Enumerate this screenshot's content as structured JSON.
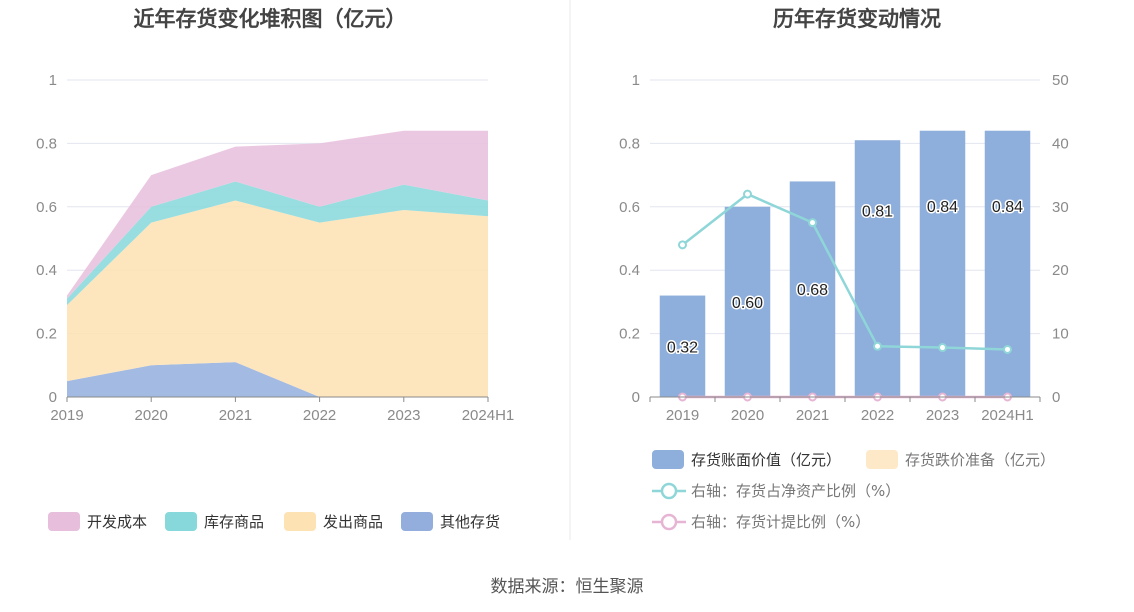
{
  "source": "数据来源：恒生聚源",
  "colors": {
    "kaifa": "#e7bedc",
    "kucun": "#86d8da",
    "fachu": "#fde2b3",
    "qita": "#93aedd",
    "bar": "#8eaedb",
    "impairment": "#fde8c8",
    "ratio_line": "#8fd6d8",
    "provision_line": "#e7b5d4",
    "grid": "#e3e6f0",
    "axis": "#8a8a8a"
  },
  "chart_data": [
    {
      "type": "area",
      "stacked": true,
      "title": "近年存货变化堆积图（亿元）",
      "categories": [
        "2019",
        "2020",
        "2021",
        "2022",
        "2023",
        "2024H1"
      ],
      "ylim": [
        0,
        1
      ],
      "yticks": [
        "0",
        "0.2",
        "0.4",
        "0.6",
        "0.8",
        "1"
      ],
      "legend_position": "bottom",
      "series": [
        {
          "name": "其他存货",
          "color_key": "qita",
          "values": [
            0.05,
            0.1,
            0.11,
            0,
            0,
            0
          ]
        },
        {
          "name": "发出商品",
          "color_key": "fachu",
          "values": [
            0.24,
            0.45,
            0.51,
            0.55,
            0.59,
            0.57
          ]
        },
        {
          "name": "库存商品",
          "color_key": "kucun",
          "values": [
            0.02,
            0.05,
            0.06,
            0.05,
            0.08,
            0.05
          ]
        },
        {
          "name": "开发成本",
          "color_key": "kaifa",
          "values": [
            0.01,
            0.1,
            0.11,
            0.2,
            0.17,
            0.22
          ]
        }
      ],
      "legend_order": [
        "开发成本",
        "库存商品",
        "发出商品",
        "其他存货"
      ]
    },
    {
      "type": "bar",
      "title": "历年存货变动情况",
      "categories": [
        "2019",
        "2020",
        "2021",
        "2022",
        "2023",
        "2024H1"
      ],
      "ylim": [
        0,
        1
      ],
      "yticks": [
        "0",
        "0.2",
        "0.4",
        "0.6",
        "0.8",
        "1"
      ],
      "y2lim": [
        0,
        50
      ],
      "y2ticks": [
        "0",
        "10",
        "20",
        "30",
        "40",
        "50"
      ],
      "legend_position": "bottom",
      "series": [
        {
          "name": "存货账面价值（亿元）",
          "type": "bar",
          "axis": "left",
          "values": [
            0.32,
            0.6,
            0.68,
            0.81,
            0.84,
            0.84
          ],
          "labels": [
            "0.32",
            "0.60",
            "0.68",
            "0.81",
            "0.84",
            "0.84"
          ]
        },
        {
          "name": "存货跌价准备（亿元）",
          "type": "bar",
          "axis": "left",
          "values": [
            0,
            0,
            0,
            0,
            0,
            0
          ]
        },
        {
          "name": "右轴：存货占净资产比例（%）",
          "type": "line",
          "axis": "right",
          "values": [
            24,
            32,
            27.5,
            8,
            7.8,
            7.5
          ]
        },
        {
          "name": "右轴：存货计提比例（%）",
          "type": "line",
          "axis": "right",
          "values": [
            0,
            0,
            0,
            0,
            0,
            0
          ]
        }
      ]
    }
  ]
}
